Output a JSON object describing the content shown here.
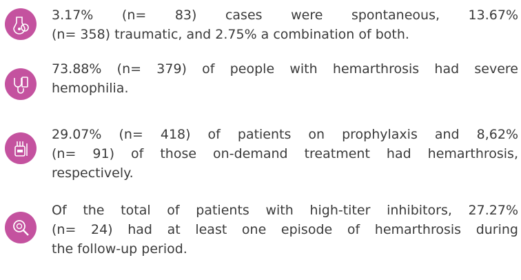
{
  "items": [
    {
      "lines": [
        "3.17% (n= 83) cases were spontaneous, 13.67%",
        "(n= 358) traumatic, and 2.75% a combination of both."
      ]
    },
    {
      "lines": [
        "73.88% (n= 379) of people with hemarthrosis had severe",
        "hemophilia."
      ]
    },
    {
      "lines": [
        "29.07% (n= 418) of patients on prophylaxis and 8,62%",
        "(n= 91) of those on-demand treatment had hemarthrosis,",
        "respectively."
      ]
    },
    {
      "lines": [
        "Of the total of patients with high-titer inhibitors, 27.27%",
        "(n= 24) had at least one episode of hemarthrosis during",
        "the follow-up period."
      ]
    }
  ]
}
